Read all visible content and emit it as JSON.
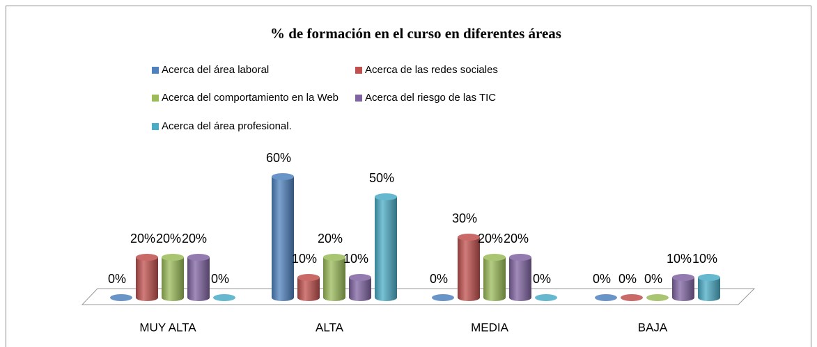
{
  "chart_data": {
    "type": "bar3d",
    "title": "% de formación en el curso en diferentes áreas",
    "categories": [
      "MUY ALTA",
      "ALTA",
      "MEDIA",
      "BAJA"
    ],
    "series": [
      {
        "name": "Acerca del área laboral",
        "color": "#4f81bd",
        "values": [
          0,
          60,
          0,
          0
        ],
        "value_labels": [
          "0%",
          "60%",
          "0%",
          "0%"
        ]
      },
      {
        "name": "Acerca de las redes sociales",
        "color": "#c0504d",
        "values": [
          20,
          10,
          30,
          0
        ],
        "value_labels": [
          "20%",
          "10%",
          "30%",
          "0%"
        ]
      },
      {
        "name": "Acerca del comportamiento en la Web",
        "color": "#9bbb59",
        "values": [
          20,
          20,
          20,
          0
        ],
        "value_labels": [
          "20%",
          "20%",
          "20%",
          "0%"
        ]
      },
      {
        "name": "Acerca del riesgo de las TIC",
        "color": "#8064a2",
        "values": [
          20,
          10,
          20,
          10
        ],
        "value_labels": [
          "20%",
          "10%",
          "20%",
          "10%"
        ]
      },
      {
        "name": "Acerca del área profesional.",
        "color": "#4bacc6",
        "values": [
          0,
          50,
          0,
          10
        ],
        "value_labels": [
          "0%",
          "50%",
          "0%",
          "10%"
        ]
      }
    ]
  }
}
